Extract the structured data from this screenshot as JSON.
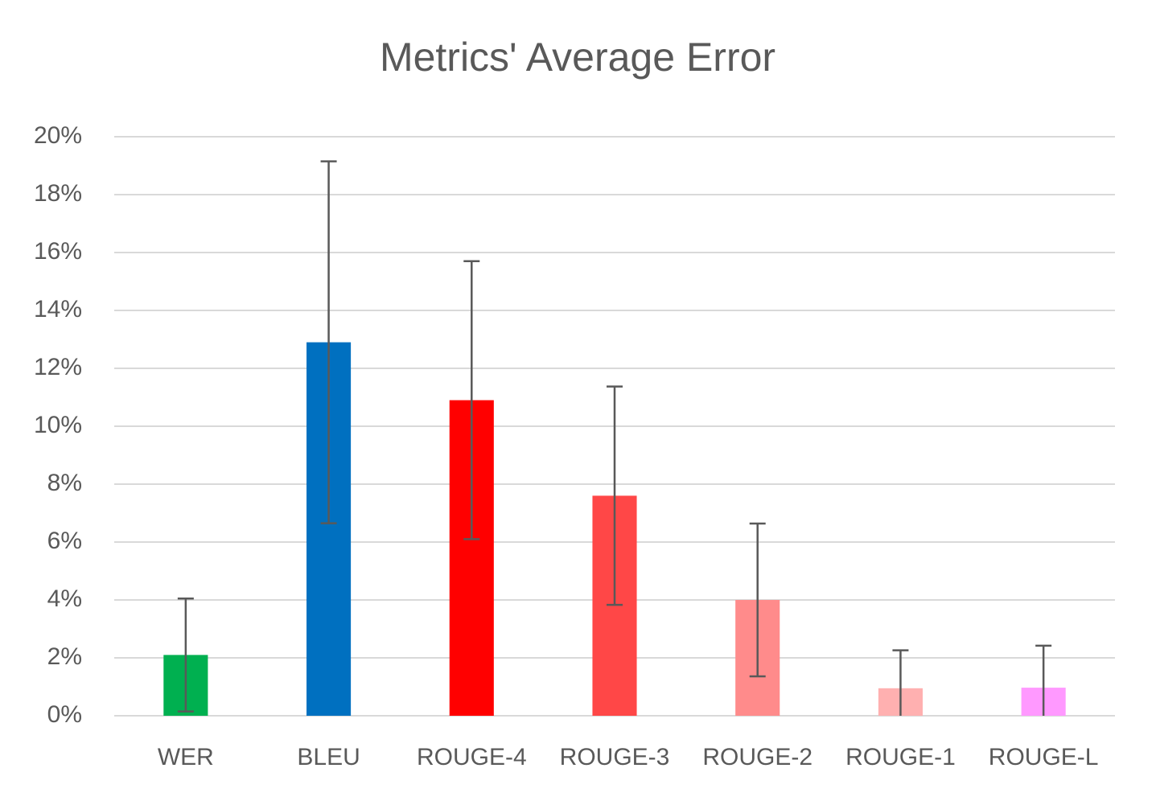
{
  "chart_data": {
    "type": "bar",
    "title": "Metrics' Average Error",
    "categories": [
      "WER",
      "BLEU",
      "ROUGE-4",
      "ROUGE-3",
      "ROUGE-2",
      "ROUGE-1",
      "ROUGE-L"
    ],
    "values": [
      2.1,
      12.9,
      10.9,
      7.6,
      4.0,
      0.95,
      0.97
    ],
    "errors": [
      1.95,
      6.25,
      4.8,
      3.77,
      2.64,
      1.31,
      1.45
    ],
    "colors": [
      "#00b050",
      "#0070c0",
      "#ff0000",
      "#ff4747",
      "#ff8b8b",
      "#ffb0b0",
      "#ff99ff"
    ],
    "ylim": [
      0,
      20
    ],
    "yticks": [
      {
        "value": 0,
        "label": "0%"
      },
      {
        "value": 2,
        "label": "2%"
      },
      {
        "value": 4,
        "label": "4%"
      },
      {
        "value": 6,
        "label": "6%"
      },
      {
        "value": 8,
        "label": "8%"
      },
      {
        "value": 10,
        "label": "10%"
      },
      {
        "value": 12,
        "label": "12%"
      },
      {
        "value": 14,
        "label": "14%"
      },
      {
        "value": 16,
        "label": "16%"
      },
      {
        "value": 18,
        "label": "18%"
      },
      {
        "value": 20,
        "label": "20%"
      }
    ],
    "grid": true
  }
}
